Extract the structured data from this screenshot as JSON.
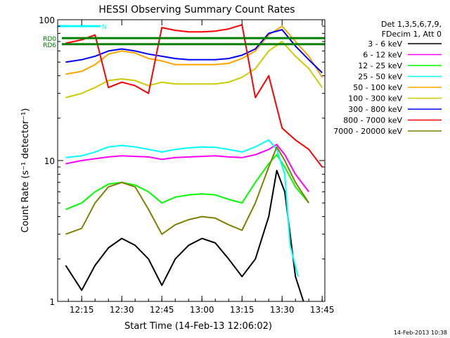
{
  "chart_data": {
    "type": "line",
    "title": "HESSI Observing Summary Count Rates",
    "xlabel": "Start Time (14-Feb-13 12:06:02)",
    "ylabel": "Count Rate (s⁻¹ detector⁻¹)",
    "x_ticks": [
      "12:15",
      "12:30",
      "12:45",
      "13:00",
      "13:15",
      "13:30",
      "13:45"
    ],
    "xlim": [
      "12:06",
      "13:46"
    ],
    "y_scale": "log",
    "y_ticks": [
      "1",
      "10",
      "100"
    ],
    "ylim": [
      1,
      100
    ],
    "grid": false,
    "legend_header": [
      "Det 1,3,5,6,7,9,",
      "FDecim 1, Att 0"
    ],
    "legend_placement": "right",
    "footer": "14-Feb-2013 10:38",
    "flags": [
      {
        "label": "RD0",
        "color": "#008000",
        "y": 74
      },
      {
        "label": "RD6",
        "color": "#008000",
        "y": 67
      },
      {
        "label": "N",
        "color": "#00ffff",
        "y": 90
      }
    ],
    "series": [
      {
        "name": "3 - 6 keV",
        "color": "#000000",
        "points": [
          [
            "12:09",
            1.8
          ],
          [
            "12:15",
            1.2
          ],
          [
            "12:20",
            1.8
          ],
          [
            "12:25",
            2.4
          ],
          [
            "12:30",
            2.8
          ],
          [
            "12:35",
            2.5
          ],
          [
            "12:40",
            2.0
          ],
          [
            "12:45",
            1.3
          ],
          [
            "12:50",
            2.0
          ],
          [
            "12:55",
            2.5
          ],
          [
            "13:00",
            2.8
          ],
          [
            "13:05",
            2.6
          ],
          [
            "13:10",
            2.0
          ],
          [
            "13:15",
            1.5
          ],
          [
            "13:20",
            2.0
          ],
          [
            "13:25",
            4.0
          ],
          [
            "13:28",
            8.5
          ],
          [
            "13:31",
            6.0
          ],
          [
            "13:35",
            1.5
          ],
          [
            "13:38",
            1.0
          ]
        ]
      },
      {
        "name": "6 - 12 keV",
        "color": "#ff00ff",
        "points": [
          [
            "12:09",
            9.5
          ],
          [
            "12:15",
            10.0
          ],
          [
            "12:20",
            10.3
          ],
          [
            "12:25",
            10.6
          ],
          [
            "12:30",
            10.8
          ],
          [
            "12:35",
            10.7
          ],
          [
            "12:40",
            10.6
          ],
          [
            "12:45",
            10.2
          ],
          [
            "12:50",
            10.5
          ],
          [
            "12:55",
            10.6
          ],
          [
            "13:00",
            10.7
          ],
          [
            "13:05",
            10.8
          ],
          [
            "13:10",
            10.6
          ],
          [
            "13:15",
            10.5
          ],
          [
            "13:20",
            11.0
          ],
          [
            "13:25",
            12.0
          ],
          [
            "13:28",
            13.0
          ],
          [
            "13:31",
            11.0
          ],
          [
            "13:35",
            8.0
          ],
          [
            "13:40",
            6.0
          ]
        ]
      },
      {
        "name": "12 - 25 keV",
        "color": "#00ff00",
        "points": [
          [
            "12:09",
            4.5
          ],
          [
            "12:15",
            5.0
          ],
          [
            "12:20",
            6.0
          ],
          [
            "12:25",
            6.8
          ],
          [
            "12:30",
            7.0
          ],
          [
            "12:35",
            6.7
          ],
          [
            "12:40",
            6.0
          ],
          [
            "12:45",
            5.0
          ],
          [
            "12:50",
            5.5
          ],
          [
            "12:55",
            5.7
          ],
          [
            "13:00",
            5.8
          ],
          [
            "13:05",
            5.7
          ],
          [
            "13:10",
            5.3
          ],
          [
            "13:15",
            5.0
          ],
          [
            "13:20",
            7.0
          ],
          [
            "13:25",
            9.5
          ],
          [
            "13:28",
            11.0
          ],
          [
            "13:31",
            9.0
          ],
          [
            "13:35",
            6.5
          ],
          [
            "13:40",
            5.0
          ]
        ]
      },
      {
        "name": "25 - 50 keV",
        "color": "#00ffff",
        "points": [
          [
            "12:09",
            10.5
          ],
          [
            "12:15",
            10.8
          ],
          [
            "12:20",
            11.5
          ],
          [
            "12:25",
            12.5
          ],
          [
            "12:30",
            12.8
          ],
          [
            "12:35",
            12.5
          ],
          [
            "12:40",
            12.0
          ],
          [
            "12:45",
            11.5
          ],
          [
            "12:50",
            12.0
          ],
          [
            "12:55",
            12.3
          ],
          [
            "13:00",
            12.5
          ],
          [
            "13:05",
            12.4
          ],
          [
            "13:10",
            12.0
          ],
          [
            "13:15",
            11.5
          ],
          [
            "13:20",
            12.5
          ],
          [
            "13:25",
            14.0
          ],
          [
            "13:28",
            12.0
          ],
          [
            "13:31",
            8.0
          ],
          [
            "13:33",
            2.5
          ],
          [
            "13:36",
            1.5
          ]
        ]
      },
      {
        "name": "50 - 100 keV",
        "color": "#ffa500",
        "points": [
          [
            "12:09",
            41
          ],
          [
            "12:15",
            43
          ],
          [
            "12:20",
            48
          ],
          [
            "12:25",
            57
          ],
          [
            "12:30",
            60
          ],
          [
            "12:35",
            58
          ],
          [
            "12:40",
            53
          ],
          [
            "12:45",
            51
          ],
          [
            "12:50",
            48
          ],
          [
            "12:55",
            48
          ],
          [
            "13:00",
            48
          ],
          [
            "13:05",
            48
          ],
          [
            "13:10",
            49
          ],
          [
            "13:15",
            53
          ],
          [
            "13:20",
            60
          ],
          [
            "13:25",
            78
          ],
          [
            "13:30",
            90
          ],
          [
            "13:35",
            70
          ],
          [
            "13:40",
            55
          ],
          [
            "13:45",
            39
          ]
        ]
      },
      {
        "name": "100 - 300 keV",
        "color": "#cccc00",
        "points": [
          [
            "12:09",
            28
          ],
          [
            "12:15",
            30
          ],
          [
            "12:20",
            33
          ],
          [
            "12:25",
            37
          ],
          [
            "12:30",
            38
          ],
          [
            "12:35",
            37
          ],
          [
            "12:40",
            34
          ],
          [
            "12:45",
            36
          ],
          [
            "12:50",
            35
          ],
          [
            "12:55",
            35
          ],
          [
            "13:00",
            35
          ],
          [
            "13:05",
            35
          ],
          [
            "13:10",
            36
          ],
          [
            "13:15",
            39
          ],
          [
            "13:20",
            45
          ],
          [
            "13:25",
            60
          ],
          [
            "13:30",
            70
          ],
          [
            "13:35",
            55
          ],
          [
            "13:40",
            45
          ],
          [
            "13:45",
            33
          ]
        ]
      },
      {
        "name": "300 - 800 keV",
        "color": "#0000ff",
        "points": [
          [
            "12:09",
            50
          ],
          [
            "12:15",
            52
          ],
          [
            "12:20",
            55
          ],
          [
            "12:25",
            60
          ],
          [
            "12:30",
            62
          ],
          [
            "12:35",
            60
          ],
          [
            "12:40",
            57
          ],
          [
            "12:45",
            55
          ],
          [
            "12:50",
            53
          ],
          [
            "12:55",
            52
          ],
          [
            "13:00",
            52
          ],
          [
            "13:05",
            52
          ],
          [
            "13:10",
            53
          ],
          [
            "13:15",
            56
          ],
          [
            "13:20",
            62
          ],
          [
            "13:25",
            80
          ],
          [
            "13:30",
            85
          ],
          [
            "13:35",
            65
          ],
          [
            "13:40",
            52
          ],
          [
            "13:45",
            42
          ]
        ]
      },
      {
        "name": "800 - 7000 keV",
        "color": "#ff0000",
        "points": [
          [
            "12:09",
            68
          ],
          [
            "12:15",
            72
          ],
          [
            "12:20",
            78
          ],
          [
            "12:25",
            33
          ],
          [
            "12:30",
            36
          ],
          [
            "12:35",
            34
          ],
          [
            "12:40",
            30
          ],
          [
            "12:45",
            88
          ],
          [
            "12:50",
            84
          ],
          [
            "12:55",
            82
          ],
          [
            "13:00",
            82
          ],
          [
            "13:05",
            83
          ],
          [
            "13:10",
            86
          ],
          [
            "13:15",
            92
          ],
          [
            "13:20",
            28
          ],
          [
            "13:25",
            40
          ],
          [
            "13:30",
            17
          ],
          [
            "13:35",
            14
          ],
          [
            "13:40",
            12
          ],
          [
            "13:45",
            9
          ]
        ]
      },
      {
        "name": "7000 - 20000 keV",
        "color": "#808000",
        "points": [
          [
            "12:09",
            3.0
          ],
          [
            "12:15",
            3.3
          ],
          [
            "12:20",
            5.0
          ],
          [
            "12:25",
            6.5
          ],
          [
            "12:30",
            7.0
          ],
          [
            "12:35",
            6.5
          ],
          [
            "12:40",
            4.5
          ],
          [
            "12:45",
            3.0
          ],
          [
            "12:50",
            3.5
          ],
          [
            "12:55",
            3.8
          ],
          [
            "13:00",
            4.0
          ],
          [
            "13:05",
            3.9
          ],
          [
            "13:10",
            3.5
          ],
          [
            "13:15",
            3.2
          ],
          [
            "13:20",
            5.0
          ],
          [
            "13:25",
            9.0
          ],
          [
            "13:28",
            12.5
          ],
          [
            "13:31",
            10.0
          ],
          [
            "13:35",
            7.0
          ],
          [
            "13:40",
            5.0
          ]
        ]
      }
    ]
  }
}
